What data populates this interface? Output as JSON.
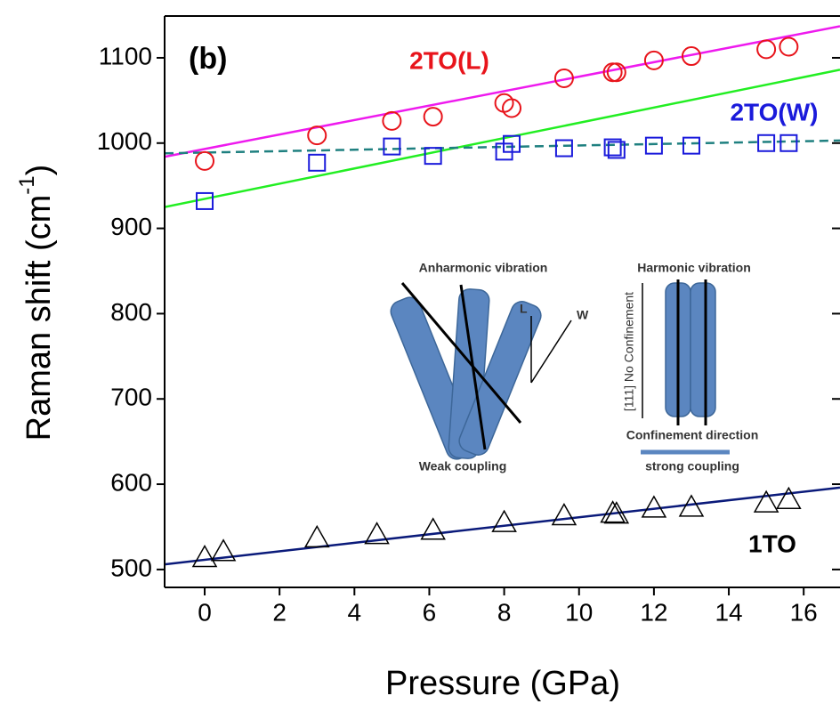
{
  "chart_data": {
    "type": "scatter",
    "xlabel": "Pressure (GPa)",
    "ylabel": "Raman shift (cm",
    "ylabel_sup": "-1",
    "ylabel_end": ")",
    "xlim": [
      -1.07,
      16.97
    ],
    "ylim": [
      479,
      1149
    ],
    "xticks": [
      0,
      2,
      4,
      6,
      8,
      10,
      12,
      14,
      16
    ],
    "yticks": [
      500,
      600,
      700,
      800,
      900,
      1000,
      1100
    ],
    "panel_label": "(b)",
    "series": [
      {
        "name": "2TO(L)",
        "color": "#e8141b",
        "marker": "circle",
        "x": [
          0,
          3,
          5,
          6.1,
          8,
          8.2,
          9.6,
          10.9,
          11,
          12,
          13,
          15,
          15.6
        ],
        "values": [
          979,
          1009,
          1026,
          1031,
          1047,
          1041,
          1076,
          1083,
          1083,
          1097,
          1102,
          1110,
          1113
        ]
      },
      {
        "name": "2TO(W)",
        "color": "#1a1adb",
        "marker": "square",
        "x": [
          0,
          3,
          5,
          6.1,
          8,
          8.2,
          9.6,
          10.9,
          11,
          12,
          13,
          15,
          15.6
        ],
        "values": [
          932,
          977,
          996,
          985,
          990,
          999,
          994,
          995,
          992,
          997,
          997,
          1000,
          1000
        ]
      },
      {
        "name": "1TO",
        "color": "#000000",
        "marker": "triangle",
        "x": [
          0,
          0.5,
          3,
          4.6,
          6.1,
          8,
          9.6,
          10.9,
          11,
          12,
          13,
          15,
          15.6
        ],
        "values": [
          514,
          521,
          537,
          541,
          546,
          555,
          563,
          566,
          565,
          572,
          573,
          578,
          582
        ]
      }
    ],
    "fits": [
      {
        "color": "#ee1aee",
        "dash": false,
        "x": [
          -1.07,
          16.97
        ],
        "values": [
          984,
          1137
        ]
      },
      {
        "color": "#22ee22",
        "dash": false,
        "x": [
          -1.07,
          16.97
        ],
        "values": [
          925,
          1086
        ]
      },
      {
        "color": "#1f8080",
        "dash": true,
        "x": [
          -1.07,
          16.97
        ],
        "values": [
          988,
          1003
        ]
      },
      {
        "color": "#0a1a7a",
        "dash": false,
        "x": [
          -1.07,
          16.97
        ],
        "values": [
          506,
          596
        ]
      }
    ],
    "inset": {
      "anharmonic": "Anharmonic vibration",
      "harmonic": "Harmonic vibration",
      "l": "L",
      "w": "W",
      "no_confinement": "[111]  No Confinement",
      "confinement": "Confinement direction",
      "weak": "Weak coupling",
      "strong": "strong coupling"
    }
  }
}
